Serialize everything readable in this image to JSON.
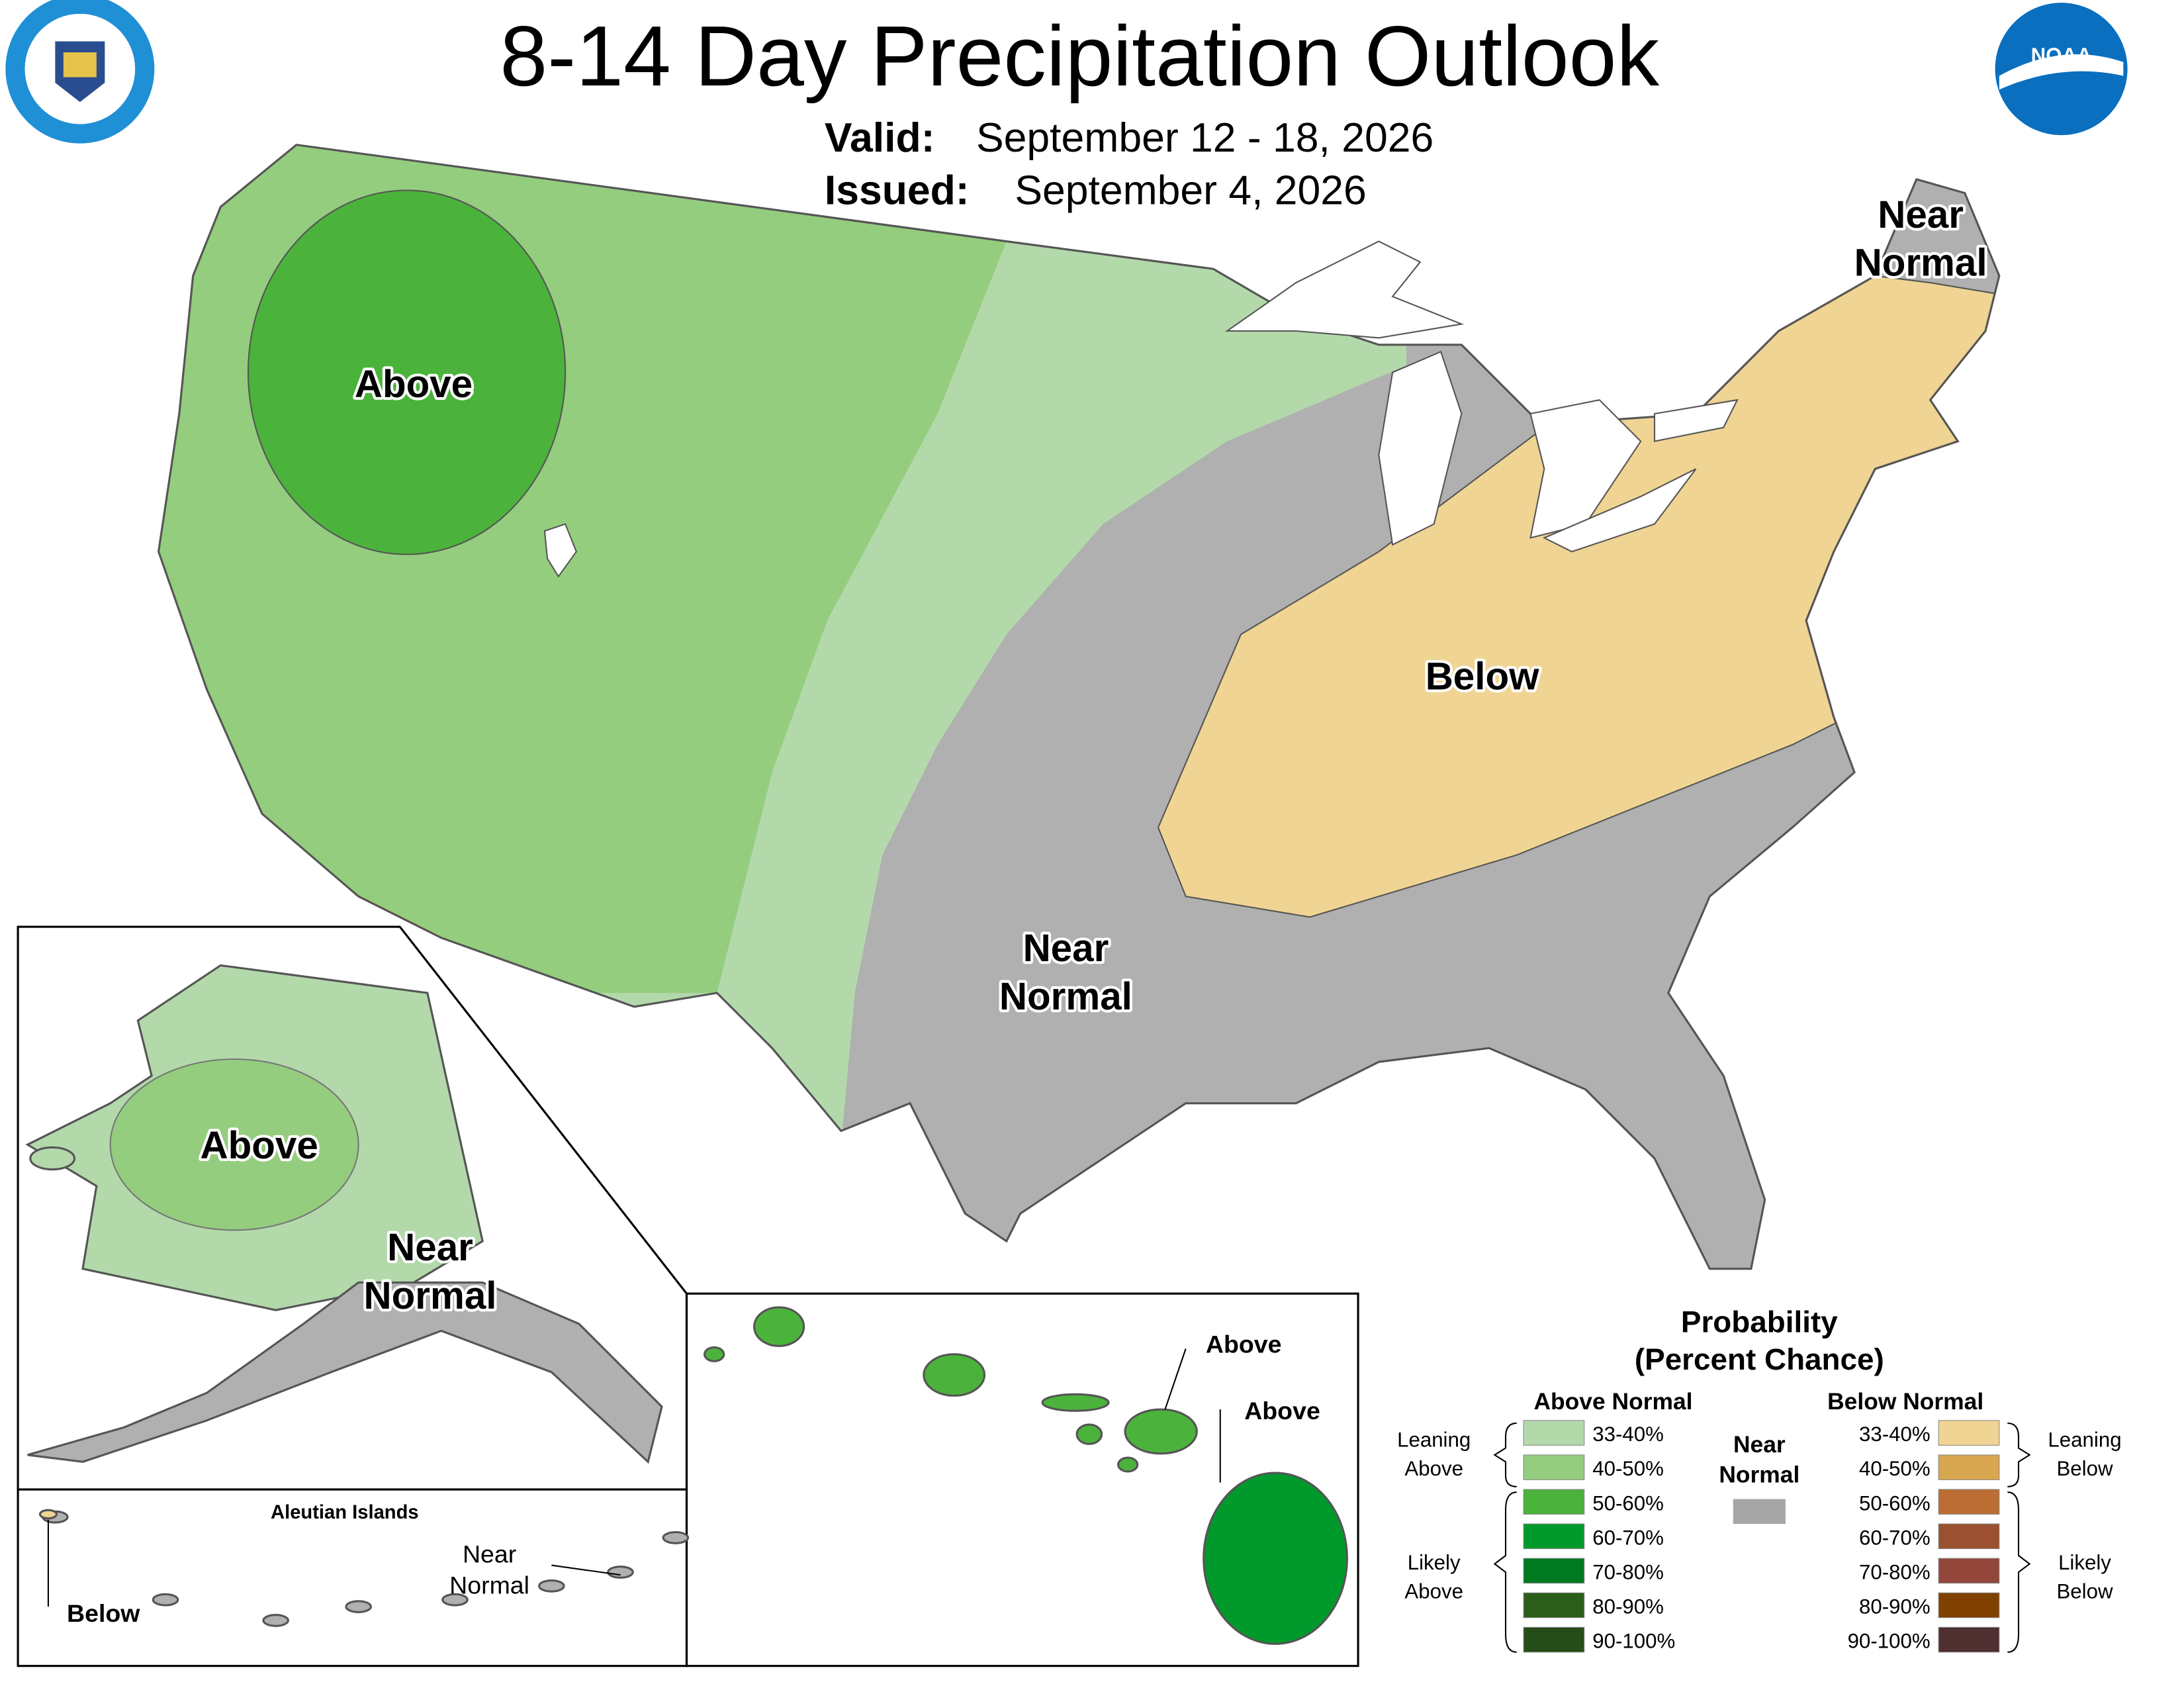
{
  "header": {
    "title": "8-14 Day Precipitation Outlook",
    "valid_label": "Valid:",
    "valid": "September 12 - 18, 2026",
    "issued_label": "Issued:",
    "issued": "September 4, 2026",
    "logo_text": "NOAA"
  },
  "map_labels": [
    {
      "lines": [
        "Above"
      ]
    },
    {
      "lines": [
        "Near",
        "Normal"
      ]
    },
    {
      "lines": [
        "Below"
      ]
    },
    {
      "lines": [
        "Near",
        "Normal"
      ]
    },
    {
      "lines": [
        "Above"
      ]
    },
    {
      "lines": [
        "Near",
        "Normal"
      ]
    },
    {
      "lines": [
        "Aleutian Islands"
      ]
    },
    {
      "lines": [
        "Below"
      ]
    },
    {
      "lines": [
        "Near",
        "Normal"
      ]
    },
    {
      "lines": [
        "Above"
      ]
    },
    {
      "lines": [
        "Above"
      ]
    }
  ],
  "legend": {
    "title": [
      "Probability",
      "(Percent Chance)"
    ],
    "above": {
      "heading": "Above Normal",
      "items": [
        {
          "range": "33-40%",
          "color": "#b3d9ab"
        },
        {
          "range": "40-50%",
          "color": "#94cd7e"
        },
        {
          "range": "50-60%",
          "color": "#4bb33b"
        },
        {
          "range": "60-70%",
          "color": "#009a2c"
        },
        {
          "range": "70-80%",
          "color": "#007a21"
        },
        {
          "range": "80-90%",
          "color": "#2b5e1a"
        },
        {
          "range": "90-100%",
          "color": "#254d17"
        }
      ],
      "leaning": [
        "Leaning",
        "Above"
      ],
      "likely": [
        "Likely",
        "Above"
      ]
    },
    "near": {
      "lines": [
        "Near",
        "Normal"
      ],
      "color": "#a6a6a6",
      "map_color": "#b0b0b0"
    },
    "below": {
      "heading": "Below Normal",
      "items": [
        {
          "range": "33-40%",
          "color": "#f0d493"
        },
        {
          "range": "40-50%",
          "color": "#d8a750"
        },
        {
          "range": "50-60%",
          "color": "#bb6d33"
        },
        {
          "range": "60-70%",
          "color": "#9b5031"
        },
        {
          "range": "70-80%",
          "color": "#93473b"
        },
        {
          "range": "80-90%",
          "color": "#804000"
        },
        {
          "range": "90-100%",
          "color": "#4f2f2f"
        }
      ],
      "leaning": [
        "Leaning",
        "Below"
      ],
      "likely": [
        "Likely",
        "Below"
      ]
    }
  }
}
